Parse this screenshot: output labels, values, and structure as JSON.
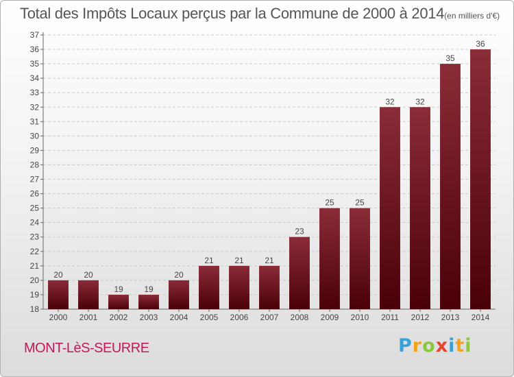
{
  "header": {
    "title": "Total des Impôts Locaux perçus par la Commune de 2000 à 2014",
    "unit": "(en milliers d'€)"
  },
  "footer": {
    "commune": "MONT-LèS-SEURRE",
    "logo_letters": [
      "P",
      "r",
      "o",
      "x",
      "i",
      "t",
      "i"
    ],
    "logo_colors": [
      "#3aa0d8",
      "#f5a21b",
      "#8cc63f",
      "#e8432c",
      "#3aa0d8",
      "#f5a21b",
      "#8cc63f"
    ]
  },
  "colors": {
    "bar_top": "#8a2c38",
    "bar_bottom": "#4a0008",
    "axis": "#666666",
    "grid": "#c8c8c8"
  },
  "chart_data": {
    "type": "bar",
    "categories": [
      "2000",
      "2001",
      "2002",
      "2003",
      "2004",
      "2005",
      "2006",
      "2007",
      "2008",
      "2009",
      "2010",
      "2011",
      "2012",
      "2013",
      "2014"
    ],
    "values": [
      20,
      20,
      19,
      19,
      20,
      21,
      21,
      21,
      23,
      25,
      25,
      32,
      32,
      35,
      36
    ],
    "data_labels": [
      "20",
      "20",
      "19",
      "19",
      "20",
      "21",
      "21",
      "21",
      "23",
      "25",
      "25",
      "32",
      "32",
      "35",
      "36"
    ],
    "yticks": [
      18,
      19,
      20,
      21,
      22,
      23,
      24,
      25,
      26,
      27,
      28,
      29,
      30,
      31,
      32,
      33,
      34,
      35,
      36,
      37
    ],
    "ylim": [
      18,
      37
    ],
    "grid": true,
    "legend": "none"
  }
}
